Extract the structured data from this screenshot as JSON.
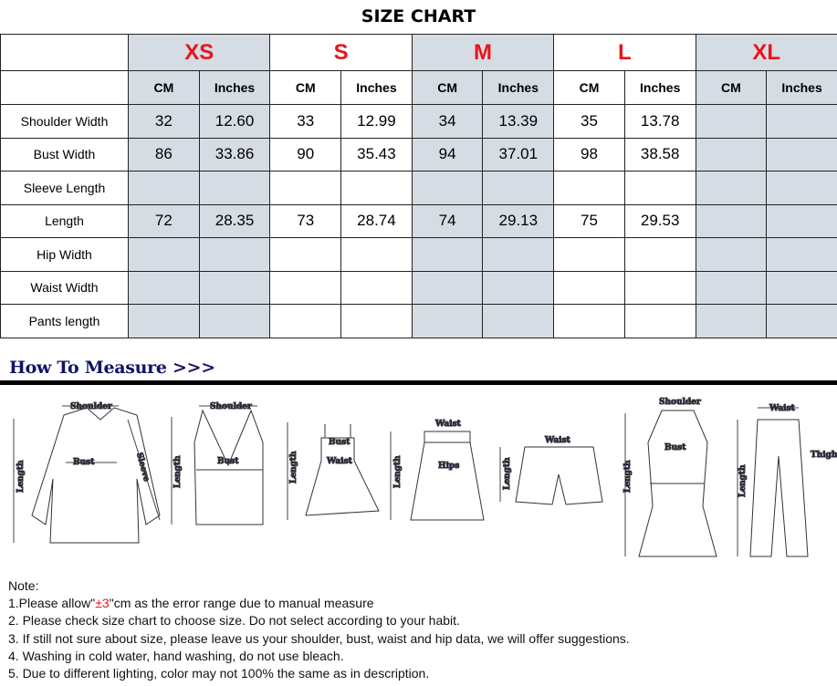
{
  "title": "SIZE CHART",
  "sizes": [
    "XS",
    "S",
    "M",
    "L",
    "XL"
  ],
  "units": [
    "CM",
    "Inches"
  ],
  "rows": [
    {
      "label": "Shoulder Width",
      "values": [
        "32",
        "12.60",
        "33",
        "12.99",
        "34",
        "13.39",
        "35",
        "13.78",
        "",
        ""
      ]
    },
    {
      "label": "Bust Width",
      "values": [
        "86",
        "33.86",
        "90",
        "35.43",
        "94",
        "37.01",
        "98",
        "38.58",
        "",
        ""
      ]
    },
    {
      "label": "Sleeve Length",
      "values": [
        "",
        "",
        "",
        "",
        "",
        "",
        "",
        "",
        "",
        ""
      ]
    },
    {
      "label": "Length",
      "values": [
        "72",
        "28.35",
        "73",
        "28.74",
        "74",
        "29.13",
        "75",
        "29.53",
        "",
        ""
      ]
    },
    {
      "label": "Hip Width",
      "values": [
        "",
        "",
        "",
        "",
        "",
        "",
        "",
        "",
        "",
        ""
      ]
    },
    {
      "label": "Waist Width",
      "values": [
        "",
        "",
        "",
        "",
        "",
        "",
        "",
        "",
        "",
        ""
      ]
    },
    {
      "label": "Pants length",
      "values": [
        "",
        "",
        "",
        "",
        "",
        "",
        "",
        "",
        "",
        ""
      ]
    }
  ],
  "shaded_color": "#d6dce4",
  "size_color": "#e8151b",
  "measure": {
    "heading": "How To Measure >>>",
    "labels": {
      "shoulder": "Shoulder",
      "bust": "Bust",
      "sleeve": "Sleeve",
      "length": "Length",
      "waist": "Waist",
      "hips": "Hips",
      "thigh": "Thigh"
    }
  },
  "notes": {
    "heading": "Note:",
    "n1_pre": "1.Please allow\"",
    "n1_red": "±3",
    "n1_post": "\"cm as the error range due to manual measure",
    "n2": "2. Please check size chart to choose size. Do not select according to your habit.",
    "n3": "3. If still not sure about size, please leave us your shoulder, bust, waist and hip data, we will offer suggestions.",
    "n4": "4. Washing in cold water, hand washing, do not use bleach.",
    "n5": "5. Due to different lighting, color may not 100% the same as in description."
  }
}
